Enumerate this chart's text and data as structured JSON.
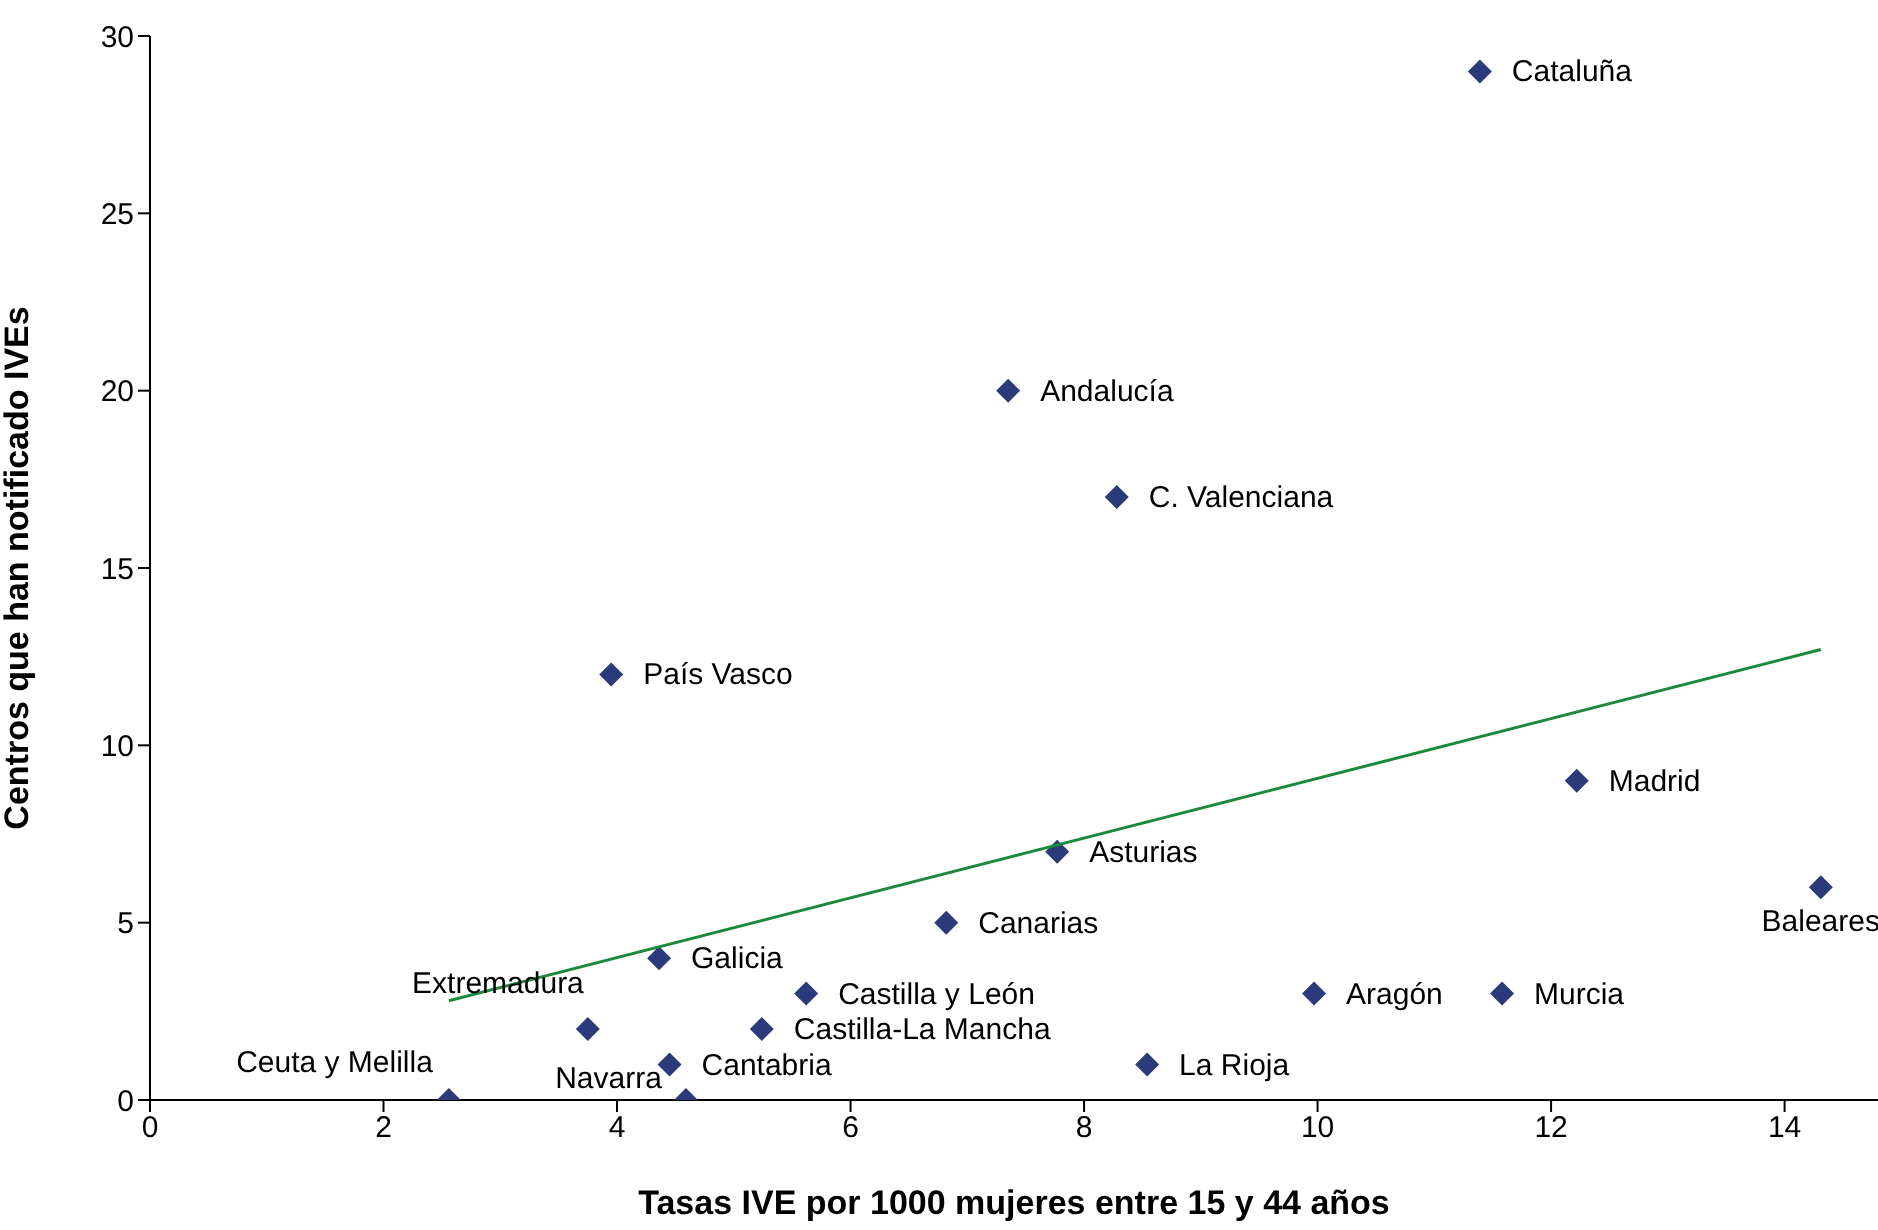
{
  "chart_data": {
    "type": "scatter",
    "xlabel": "Tasas IVE por 1000 mujeres entre 15 y 44 años",
    "ylabel": "Centros que han notificado IVEs",
    "xlim": [
      0,
      14.8
    ],
    "xticks": [
      0,
      2,
      4,
      6,
      8,
      10,
      12,
      14
    ],
    "ylim": [
      0,
      30
    ],
    "yticks": [
      0,
      5,
      10,
      15,
      20,
      25,
      30
    ],
    "grid": false,
    "legend": false,
    "marker": "diamond",
    "series": [
      {
        "color": "#2b3a7a",
        "x": [
          11.39,
          7.35,
          8.28,
          3.95,
          12.22,
          7.77,
          14.31,
          6.82,
          4.36,
          5.62,
          9.97,
          11.58,
          3.75,
          5.24,
          4.45,
          8.54,
          2.56,
          4.59
        ],
        "values": [
          29,
          20,
          17,
          12,
          9,
          7,
          6,
          5,
          4,
          3,
          3,
          3,
          2,
          2,
          1,
          1,
          0,
          0
        ]
      },
      {
        "type": "line",
        "marker": "none",
        "color": "#1a8a3a",
        "x": [
          2.56,
          14.31
        ],
        "values": [
          2.8,
          12.7
        ]
      }
    ],
    "annotations": [
      {
        "text": "Cataluña",
        "x": 11.39,
        "y": 29
      },
      {
        "text": "Andalucía",
        "x": 7.35,
        "y": 20
      },
      {
        "text": "C. Valenciana",
        "x": 8.28,
        "y": 17
      },
      {
        "text": "País Vasco",
        "x": 3.95,
        "y": 12
      },
      {
        "text": "Madrid",
        "x": 12.22,
        "y": 9
      },
      {
        "text": "Asturias",
        "x": 7.77,
        "y": 7
      },
      {
        "text": "Baleares",
        "x": 14.31,
        "y": 6
      },
      {
        "text": "Canarias",
        "x": 6.82,
        "y": 5
      },
      {
        "text": "Galicia",
        "x": 4.36,
        "y": 4
      },
      {
        "text": "Castilla y León",
        "x": 5.62,
        "y": 3
      },
      {
        "text": "Aragón",
        "x": 9.97,
        "y": 3
      },
      {
        "text": "Murcia",
        "x": 11.58,
        "y": 3
      },
      {
        "text": "Extremadura",
        "x": 3.75,
        "y": 2
      },
      {
        "text": "Castilla-La Mancha",
        "x": 5.24,
        "y": 2
      },
      {
        "text": "Cantabria",
        "x": 4.45,
        "y": 1
      },
      {
        "text": "La Rioja",
        "x": 8.54,
        "y": 1
      },
      {
        "text": "Ceuta y Melilla",
        "x": 2.56,
        "y": 0
      },
      {
        "text": "Navarra",
        "x": 4.59,
        "y": 0
      }
    ]
  }
}
